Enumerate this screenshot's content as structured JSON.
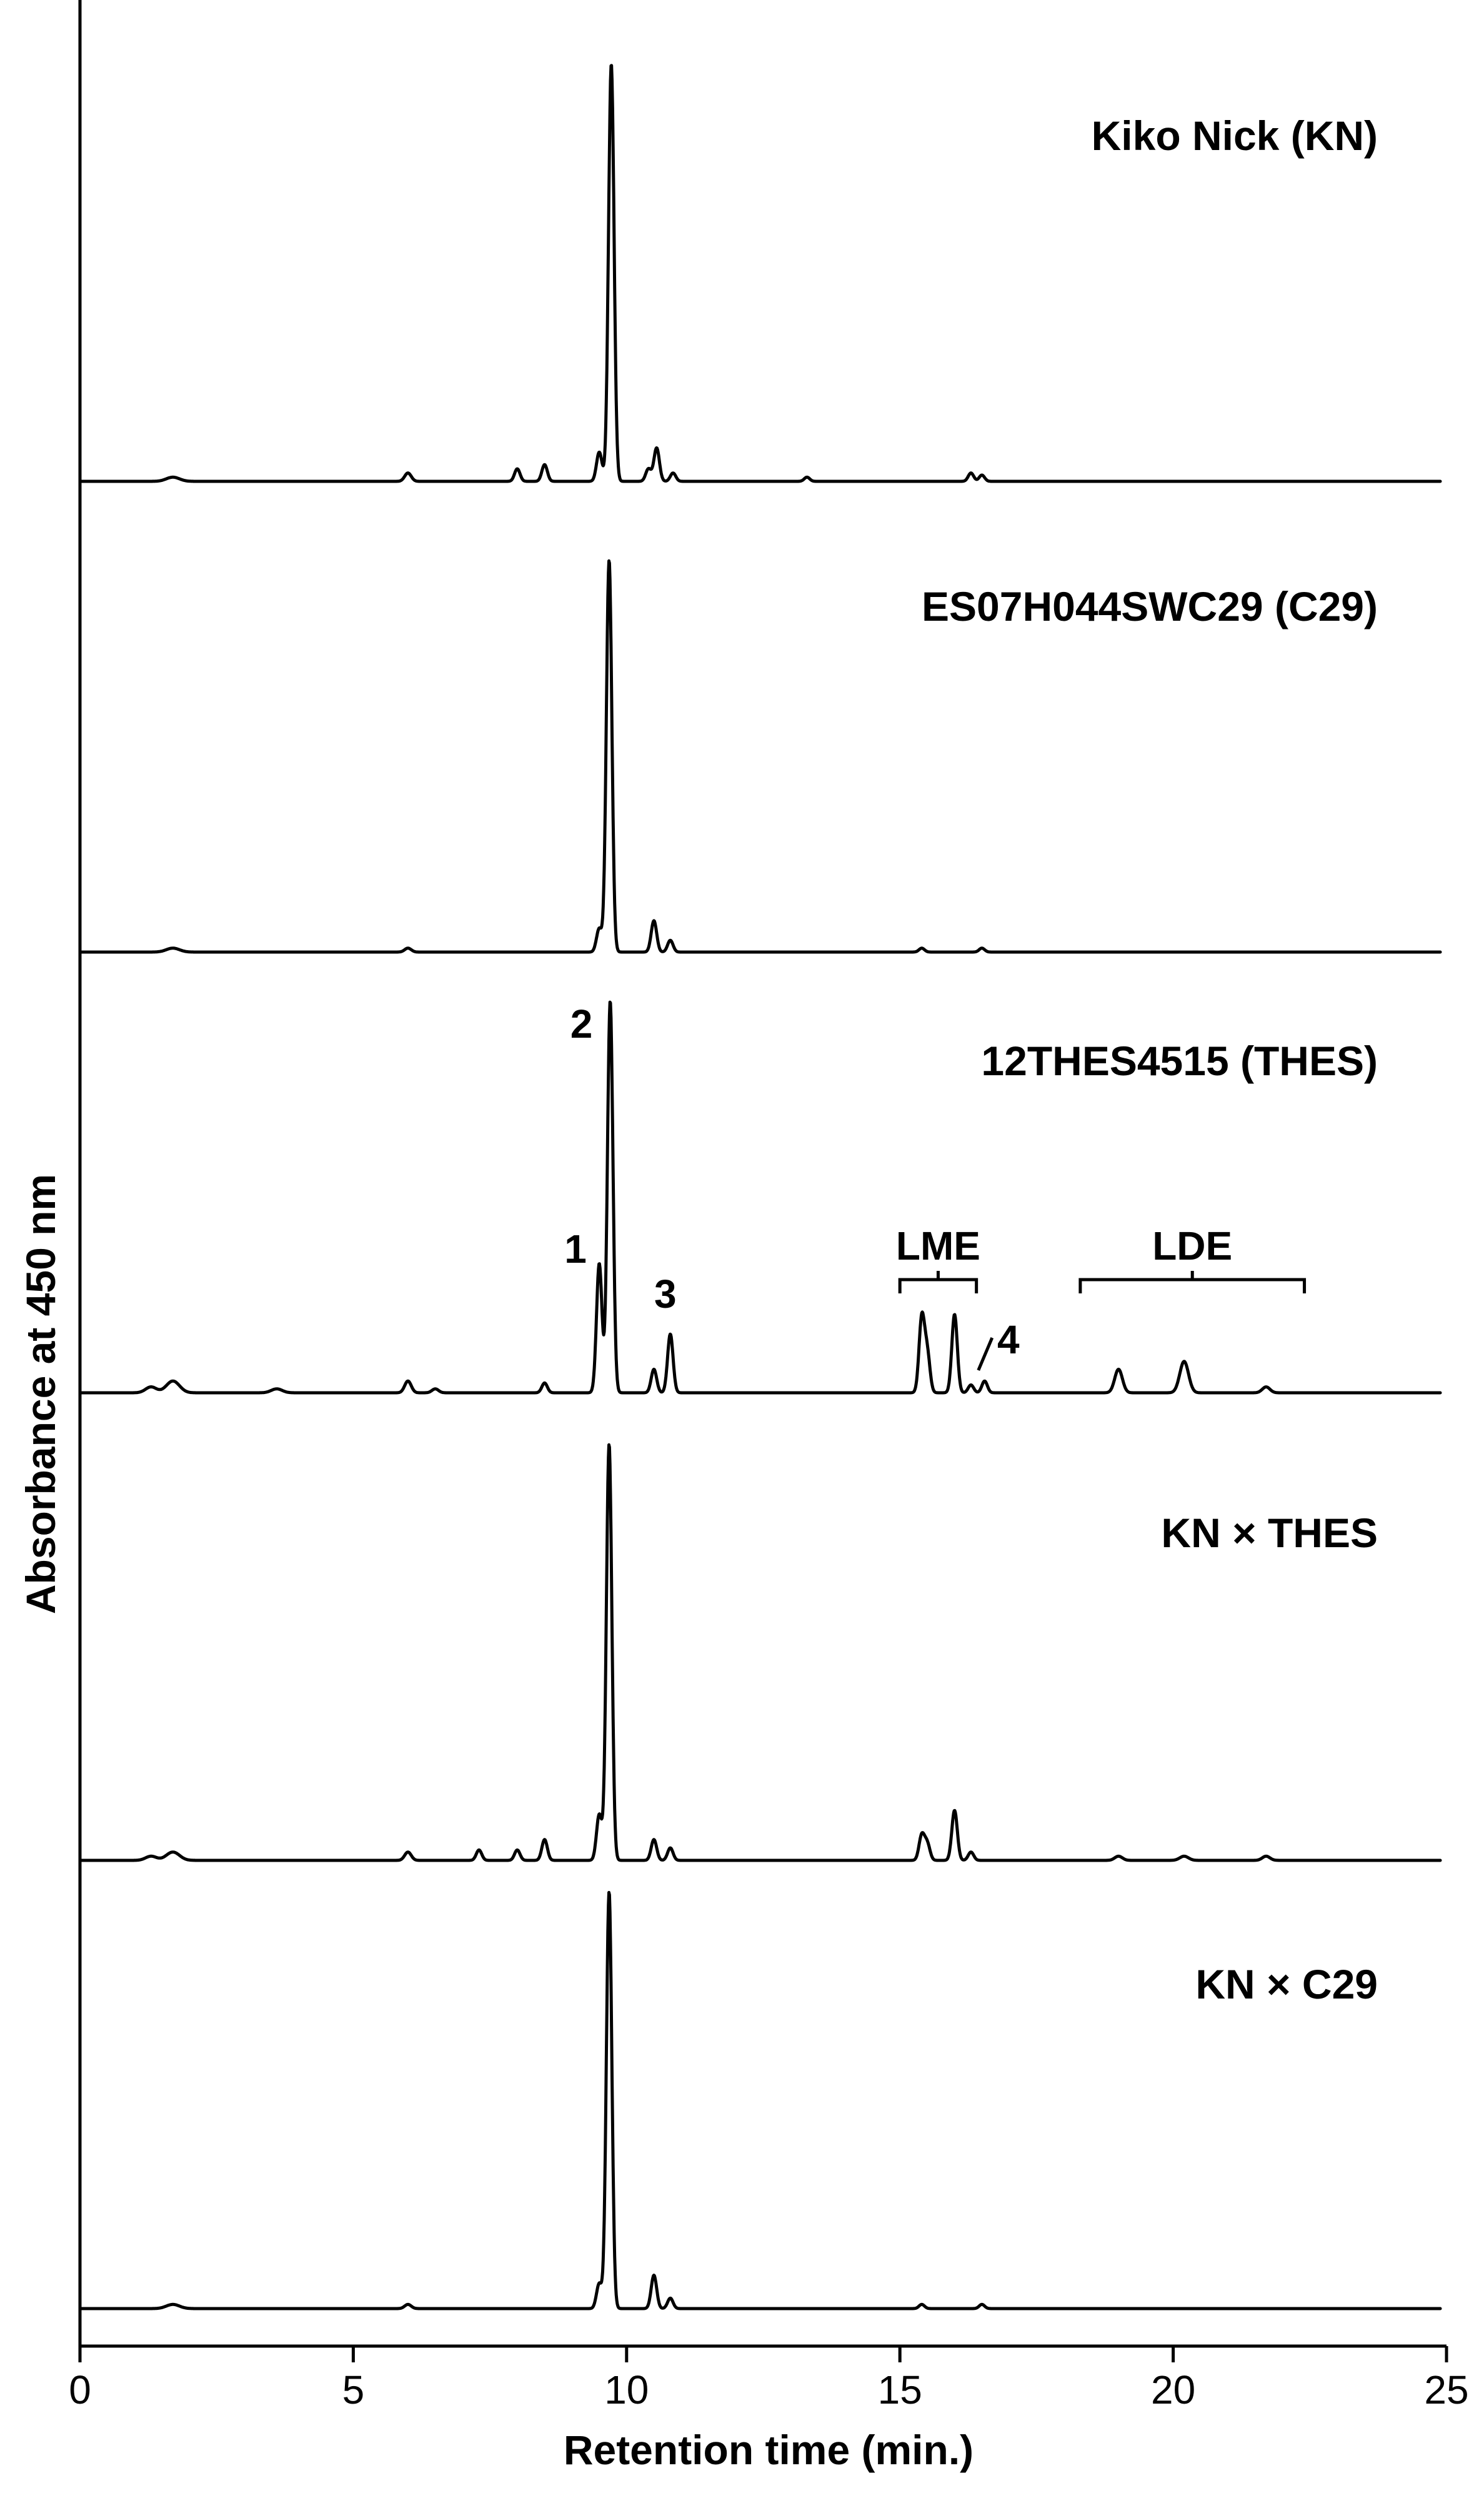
{
  "chart_data": {
    "type": "line",
    "layout": "stacked chromatograms",
    "xlabel": "Retention time (min.)",
    "ylabel": "Absorbance at 450 nm",
    "xlim": [
      0,
      25
    ],
    "xticks": [
      0,
      5,
      10,
      15,
      20,
      25
    ],
    "grid": false,
    "y_scale": "arbitrary units; each trace offset vertically",
    "series": [
      {
        "name": "Kiko Nick (KN)",
        "peaks": [
          {
            "x": 1.7,
            "h": 0.01,
            "w": 0.12
          },
          {
            "x": 6.0,
            "h": 0.02,
            "w": 0.06
          },
          {
            "x": 8.0,
            "h": 0.03,
            "w": 0.05
          },
          {
            "x": 8.5,
            "h": 0.04,
            "w": 0.05
          },
          {
            "x": 9.5,
            "h": 0.07,
            "w": 0.05
          },
          {
            "x": 9.72,
            "h": 1.0,
            "w": 0.05
          },
          {
            "x": 10.4,
            "h": 0.03,
            "w": 0.05
          },
          {
            "x": 10.55,
            "h": 0.08,
            "w": 0.05
          },
          {
            "x": 10.85,
            "h": 0.02,
            "w": 0.05
          },
          {
            "x": 13.3,
            "h": 0.01,
            "w": 0.05
          },
          {
            "x": 16.3,
            "h": 0.02,
            "w": 0.05
          },
          {
            "x": 16.5,
            "h": 0.015,
            "w": 0.05
          }
        ]
      },
      {
        "name": "ES07H044SWC29 (C29)",
        "peaks": [
          {
            "x": 1.7,
            "h": 0.01,
            "w": 0.12
          },
          {
            "x": 6.0,
            "h": 0.01,
            "w": 0.06
          },
          {
            "x": 9.5,
            "h": 0.06,
            "w": 0.05
          },
          {
            "x": 9.68,
            "h": 1.0,
            "w": 0.05
          },
          {
            "x": 10.5,
            "h": 0.08,
            "w": 0.05
          },
          {
            "x": 10.8,
            "h": 0.03,
            "w": 0.05
          },
          {
            "x": 15.4,
            "h": 0.01,
            "w": 0.05
          },
          {
            "x": 16.5,
            "h": 0.01,
            "w": 0.05
          }
        ]
      },
      {
        "name": "12THES4515 (THES)",
        "peaks": [
          {
            "x": 1.3,
            "h": 0.015,
            "w": 0.1
          },
          {
            "x": 1.7,
            "h": 0.03,
            "w": 0.12
          },
          {
            "x": 3.6,
            "h": 0.01,
            "w": 0.1
          },
          {
            "x": 6.0,
            "h": 0.03,
            "w": 0.06
          },
          {
            "x": 6.5,
            "h": 0.01,
            "w": 0.06
          },
          {
            "x": 8.5,
            "h": 0.025,
            "w": 0.05
          },
          {
            "x": 9.5,
            "h": 0.33,
            "w": 0.05
          },
          {
            "x": 9.7,
            "h": 1.0,
            "w": 0.05
          },
          {
            "x": 10.5,
            "h": 0.06,
            "w": 0.05
          },
          {
            "x": 10.8,
            "h": 0.15,
            "w": 0.05
          },
          {
            "x": 15.4,
            "h": 0.19,
            "w": 0.05
          },
          {
            "x": 15.5,
            "h": 0.1,
            "w": 0.05
          },
          {
            "x": 16.0,
            "h": 0.2,
            "w": 0.05
          },
          {
            "x": 16.3,
            "h": 0.02,
            "w": 0.05
          },
          {
            "x": 16.55,
            "h": 0.03,
            "w": 0.05
          },
          {
            "x": 19.0,
            "h": 0.06,
            "w": 0.07
          },
          {
            "x": 20.2,
            "h": 0.08,
            "w": 0.08
          },
          {
            "x": 21.7,
            "h": 0.015,
            "w": 0.07
          }
        ]
      },
      {
        "name": "KN × THES",
        "peaks": [
          {
            "x": 1.3,
            "h": 0.01,
            "w": 0.1
          },
          {
            "x": 1.7,
            "h": 0.02,
            "w": 0.12
          },
          {
            "x": 6.0,
            "h": 0.02,
            "w": 0.06
          },
          {
            "x": 7.3,
            "h": 0.025,
            "w": 0.05
          },
          {
            "x": 8.0,
            "h": 0.025,
            "w": 0.05
          },
          {
            "x": 8.5,
            "h": 0.05,
            "w": 0.05
          },
          {
            "x": 9.5,
            "h": 0.11,
            "w": 0.05
          },
          {
            "x": 9.68,
            "h": 1.0,
            "w": 0.05
          },
          {
            "x": 10.5,
            "h": 0.05,
            "w": 0.05
          },
          {
            "x": 10.8,
            "h": 0.03,
            "w": 0.05
          },
          {
            "x": 15.4,
            "h": 0.06,
            "w": 0.05
          },
          {
            "x": 15.5,
            "h": 0.04,
            "w": 0.05
          },
          {
            "x": 16.0,
            "h": 0.12,
            "w": 0.05
          },
          {
            "x": 16.3,
            "h": 0.02,
            "w": 0.05
          },
          {
            "x": 19.0,
            "h": 0.01,
            "w": 0.07
          },
          {
            "x": 20.2,
            "h": 0.01,
            "w": 0.08
          },
          {
            "x": 21.7,
            "h": 0.01,
            "w": 0.07
          }
        ]
      },
      {
        "name": "KN × C29",
        "peaks": [
          {
            "x": 1.7,
            "h": 0.01,
            "w": 0.12
          },
          {
            "x": 6.0,
            "h": 0.01,
            "w": 0.06
          },
          {
            "x": 9.5,
            "h": 0.06,
            "w": 0.05
          },
          {
            "x": 9.68,
            "h": 1.0,
            "w": 0.05
          },
          {
            "x": 10.5,
            "h": 0.08,
            "w": 0.05
          },
          {
            "x": 10.8,
            "h": 0.025,
            "w": 0.05
          },
          {
            "x": 15.4,
            "h": 0.01,
            "w": 0.05
          },
          {
            "x": 16.5,
            "h": 0.01,
            "w": 0.05
          }
        ]
      }
    ],
    "annotations": [
      {
        "series": "12THES4515 (THES)",
        "text": "1",
        "x": 9.5
      },
      {
        "series": "12THES4515 (THES)",
        "text": "2",
        "x": 9.7
      },
      {
        "series": "12THES4515 (THES)",
        "text": "3",
        "x": 10.8
      },
      {
        "series": "12THES4515 (THES)",
        "text": "4",
        "x": 16.55
      }
    ],
    "brackets": [
      {
        "series": "12THES4515 (THES)",
        "text": "LME",
        "x_range": [
          15.0,
          16.4
        ]
      },
      {
        "series": "12THES4515 (THES)",
        "text": "LDE",
        "x_range": [
          18.3,
          22.4
        ]
      }
    ]
  }
}
